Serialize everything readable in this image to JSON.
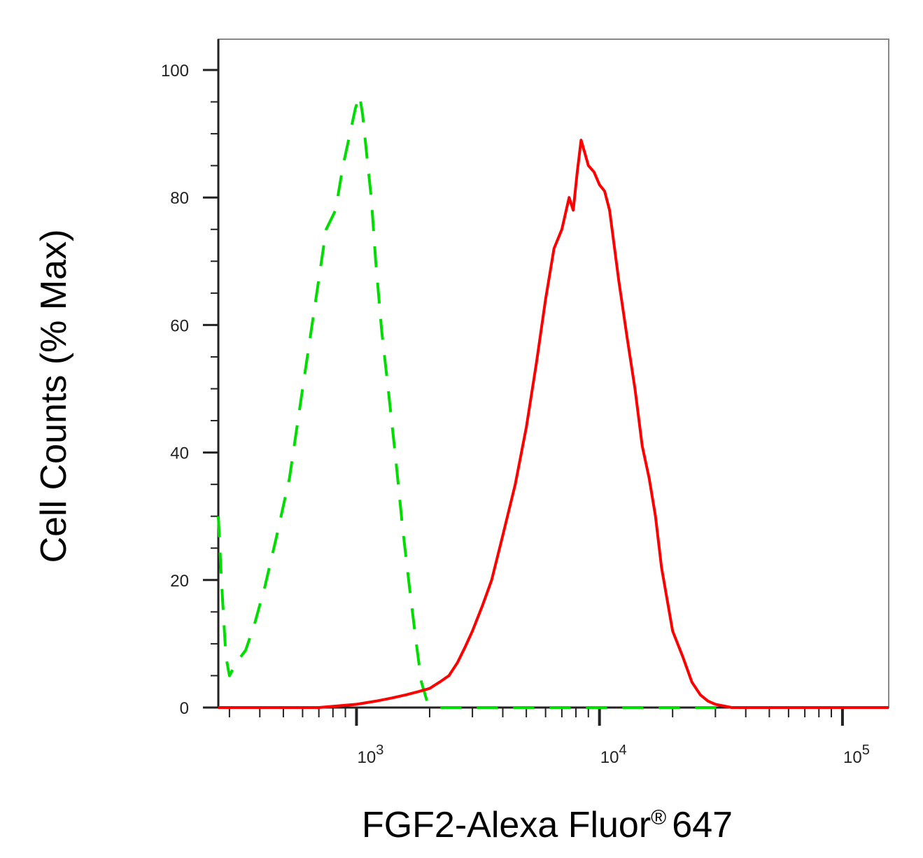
{
  "chart_data": {
    "type": "line",
    "title": "",
    "xlabel": "FGF2-Alexa Fluor",
    "xlabel_mark": "®",
    "xlabel_suffix": "647",
    "ylabel": "Cell Counts (% Max)",
    "xscale": "log",
    "xlim": [
      270,
      155000
    ],
    "ylim": [
      0,
      105
    ],
    "y_ticks": [
      0,
      20,
      40,
      60,
      80,
      100
    ],
    "x_ticks": [
      {
        "value": 1000,
        "base": "10",
        "exp": "3"
      },
      {
        "value": 10000,
        "base": "10",
        "exp": "4"
      },
      {
        "value": 100000,
        "base": "10",
        "exp": "5"
      }
    ],
    "grid": false,
    "legend": "none",
    "series": [
      {
        "color": "#00dd00",
        "style": "dashed",
        "x": [
          270,
          278,
          290,
          300,
          320,
          350,
          380,
          420,
          470,
          530,
          600,
          680,
          750,
          820,
          880,
          940,
          990,
          1030,
          1060,
          1100,
          1150,
          1200,
          1270,
          1350,
          1450,
          1550,
          1650,
          1750,
          1850,
          1950,
          2200,
          3000,
          5000,
          10000,
          20000,
          50000,
          100000,
          155000
        ],
        "y": [
          30,
          20,
          8,
          5,
          7,
          9,
          13,
          19,
          27,
          36,
          50,
          64,
          75,
          78,
          85,
          90,
          94,
          96,
          93,
          87,
          80,
          70,
          59,
          50,
          39,
          28,
          19,
          11,
          4,
          1,
          0,
          0,
          0,
          0,
          0,
          0,
          0,
          0
        ]
      },
      {
        "color": "#ff0000",
        "style": "solid",
        "x": [
          270,
          700,
          1000,
          1200,
          1400,
          1600,
          1800,
          2000,
          2200,
          2400,
          2600,
          2800,
          3000,
          3300,
          3600,
          4000,
          4500,
          5000,
          5500,
          6000,
          6500,
          7000,
          7500,
          7800,
          8100,
          8400,
          8700,
          9000,
          9500,
          10000,
          10500,
          11000,
          12000,
          13000,
          14000,
          15000,
          16000,
          17000,
          18000,
          20000,
          22000,
          24000,
          26000,
          28000,
          30000,
          35000,
          40000,
          50000,
          70000,
          100000,
          155000
        ],
        "y": [
          0,
          0,
          0.5,
          1,
          1.5,
          2,
          2.5,
          3,
          4,
          5,
          7,
          9.5,
          12,
          16,
          20,
          27,
          35,
          44,
          54,
          64,
          72,
          75,
          80,
          78,
          84,
          89,
          87,
          85,
          84,
          82,
          81,
          78,
          67,
          58,
          50,
          41,
          36,
          30,
          22,
          12,
          8,
          4,
          2,
          1,
          0.5,
          0,
          0,
          0,
          0,
          0,
          0
        ]
      }
    ]
  }
}
